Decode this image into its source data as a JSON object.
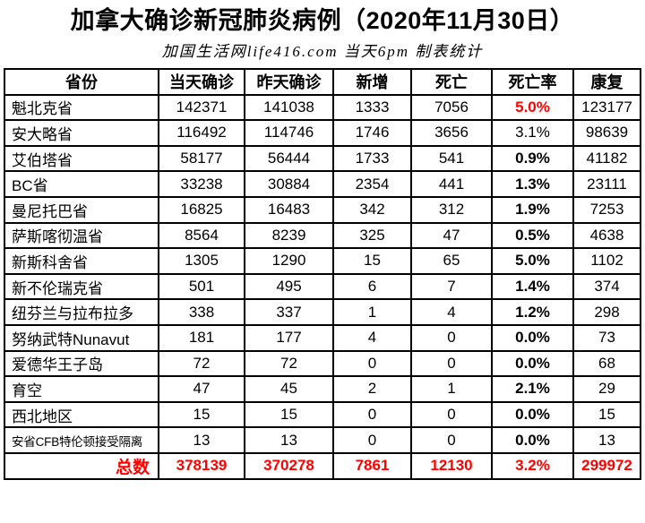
{
  "title": "加拿大确诊新冠肺炎病例（2020年11月30日）",
  "subtitle": "加国生活网life416.com 当天6pm 制表统计",
  "colors": {
    "accent_red": "#ff0000",
    "text": "#000000",
    "border": "#000000",
    "background": "#ffffff"
  },
  "table": {
    "columns": [
      "省份",
      "当天确诊",
      "昨天确诊",
      "新增",
      "死亡",
      "死亡率",
      "康复"
    ],
    "rows": [
      {
        "province": "魁北克省",
        "today": "142371",
        "yesterday": "141038",
        "new_cases": "1333",
        "deaths": "7056",
        "death_rate": "5.0%",
        "recovered": "123177",
        "rate_style": "red",
        "small_label": false
      },
      {
        "province": "安大略省",
        "today": "116492",
        "yesterday": "114746",
        "new_cases": "1746",
        "deaths": "3656",
        "death_rate": "3.1%",
        "recovered": "98639",
        "rate_style": "plain",
        "small_label": false
      },
      {
        "province": "艾伯塔省",
        "today": "58177",
        "yesterday": "56444",
        "new_cases": "1733",
        "deaths": "541",
        "death_rate": "0.9%",
        "recovered": "41182",
        "rate_style": "bold",
        "small_label": false
      },
      {
        "province": "BC省",
        "today": "33238",
        "yesterday": "30884",
        "new_cases": "2354",
        "deaths": "441",
        "death_rate": "1.3%",
        "recovered": "23111",
        "rate_style": "bold",
        "small_label": false
      },
      {
        "province": "曼尼托巴省",
        "today": "16825",
        "yesterday": "16483",
        "new_cases": "342",
        "deaths": "312",
        "death_rate": "1.9%",
        "recovered": "7253",
        "rate_style": "bold",
        "small_label": false
      },
      {
        "province": "萨斯喀彻温省",
        "today": "8564",
        "yesterday": "8239",
        "new_cases": "325",
        "deaths": "47",
        "death_rate": "0.5%",
        "recovered": "4638",
        "rate_style": "bold",
        "small_label": false
      },
      {
        "province": "新斯科舍省",
        "today": "1305",
        "yesterday": "1290",
        "new_cases": "15",
        "deaths": "65",
        "death_rate": "5.0%",
        "recovered": "1102",
        "rate_style": "bold",
        "small_label": false
      },
      {
        "province": "新不伦瑞克省",
        "today": "501",
        "yesterday": "495",
        "new_cases": "6",
        "deaths": "7",
        "death_rate": "1.4%",
        "recovered": "374",
        "rate_style": "bold",
        "small_label": false
      },
      {
        "province": "纽芬兰与拉布拉多",
        "today": "338",
        "yesterday": "337",
        "new_cases": "1",
        "deaths": "4",
        "death_rate": "1.2%",
        "recovered": "298",
        "rate_style": "bold",
        "small_label": false
      },
      {
        "province": "努纳武特Nunavut",
        "today": "181",
        "yesterday": "177",
        "new_cases": "4",
        "deaths": "0",
        "death_rate": "0.0%",
        "recovered": "73",
        "rate_style": "bold",
        "small_label": false
      },
      {
        "province": "爱德华王子岛",
        "today": "72",
        "yesterday": "72",
        "new_cases": "0",
        "deaths": "0",
        "death_rate": "0.0%",
        "recovered": "68",
        "rate_style": "bold",
        "small_label": false
      },
      {
        "province": "育空",
        "today": "47",
        "yesterday": "45",
        "new_cases": "2",
        "deaths": "1",
        "death_rate": "2.1%",
        "recovered": "29",
        "rate_style": "bold",
        "small_label": false
      },
      {
        "province": "西北地区",
        "today": "15",
        "yesterday": "15",
        "new_cases": "0",
        "deaths": "0",
        "death_rate": "0.0%",
        "recovered": "15",
        "rate_style": "bold",
        "small_label": false
      },
      {
        "province": "安省CFB特伦顿接受隔离",
        "today": "13",
        "yesterday": "13",
        "new_cases": "0",
        "deaths": "0",
        "death_rate": "0.0%",
        "recovered": "13",
        "rate_style": "bold",
        "small_label": true
      }
    ],
    "total_row": {
      "label": "总数",
      "today": "378139",
      "yesterday": "370278",
      "new_cases": "7861",
      "deaths": "12130",
      "death_rate": "3.2%",
      "recovered": "299972"
    }
  }
}
